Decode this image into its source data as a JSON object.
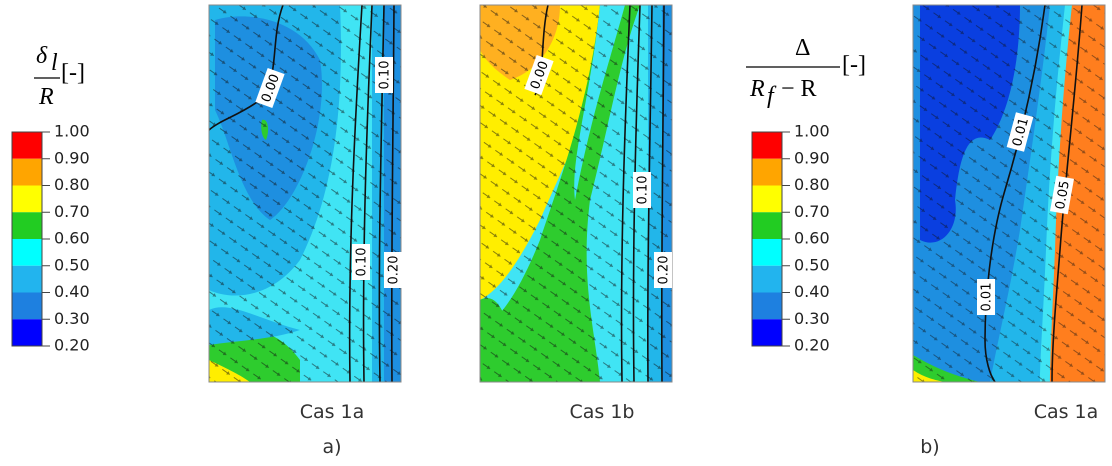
{
  "panel_a": {
    "legend": {
      "title": {
        "symbol": "δ",
        "subscript": "l",
        "denominator": "R",
        "unit": "[-]"
      },
      "levels": [
        "1.00",
        "0.90",
        "0.80",
        "0.70",
        "0.60",
        "0.50",
        "0.40",
        "0.30",
        "0.20"
      ]
    },
    "plots": [
      {
        "caption": "Cas 1a",
        "contour_labels": [
          "0.00",
          "0.10",
          "0.10",
          "0.20"
        ]
      },
      {
        "caption": "Cas 1b",
        "contour_labels": [
          "0.00",
          "0.10",
          "0.20"
        ]
      }
    ],
    "label": "a)"
  },
  "panel_b": {
    "legend": {
      "title": {
        "numerator": "Δ",
        "denominator": "R",
        "subscript": "f",
        "denominator_rest": "− R",
        "unit": "[-]"
      },
      "levels": [
        "1.00",
        "0.90",
        "0.80",
        "0.70",
        "0.60",
        "0.50",
        "0.40",
        "0.30",
        "0.20"
      ]
    },
    "plots": [
      {
        "caption": "Cas 1a",
        "contour_labels": [
          "0.01",
          "0.05",
          "0.01"
        ]
      }
    ],
    "label": "b)"
  }
}
